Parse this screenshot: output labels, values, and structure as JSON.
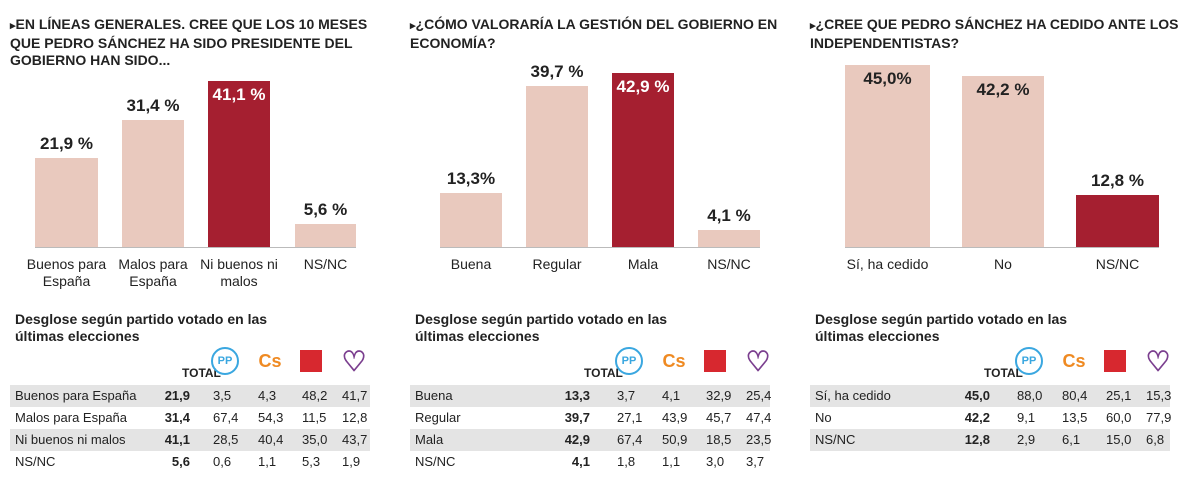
{
  "colors": {
    "light": "#e9c9be",
    "dark": "#a51f30",
    "pp": "#3aa7e0",
    "cs": "#ef8a22",
    "psoe": "#d7282f",
    "podemos": "#7b3f8f"
  },
  "table_title": "Desglose según partido votado en las últimas elecciones",
  "total_label": "TOTAL",
  "party_logos": [
    "PP",
    "Cs",
    "PSOE",
    "Podemos"
  ],
  "chart_data": [
    {
      "type": "bar",
      "title": "En líneas generales. Cree que los 10 meses que Pedro Sánchez ha sido presidente del Gobierno han sido...",
      "categories": [
        "Buenos para España",
        "Malos para España",
        "Ni buenos ni malos",
        "NS/NC"
      ],
      "values": [
        21.9,
        31.4,
        41.1,
        5.6
      ],
      "labels": [
        "21,9 %",
        "31,4 %",
        "41,1 %",
        "5,6 %"
      ],
      "highlight": 2,
      "unit": "%",
      "table": {
        "rows": [
          [
            "Buenos para España",
            "21,9",
            "3,5",
            "4,3",
            "48,2",
            "41,7"
          ],
          [
            "Malos para España",
            "31,4",
            "67,4",
            "54,3",
            "11,5",
            "12,8"
          ],
          [
            "Ni buenos ni malos",
            "41,1",
            "28,5",
            "40,4",
            "35,0",
            "43,7"
          ],
          [
            "NS/NC",
            "5,6",
            "0,6",
            "1,1",
            "5,3",
            "1,9"
          ]
        ]
      }
    },
    {
      "type": "bar",
      "title": "¿Cómo valoraría la gestión del Gobierno en economía?",
      "categories": [
        "Buena",
        "Regular",
        "Mala",
        "NS/NC"
      ],
      "values": [
        13.3,
        39.7,
        42.9,
        4.1
      ],
      "labels": [
        "13,3%",
        "39,7 %",
        "42,9 %",
        "4,1 %"
      ],
      "highlight": 2,
      "unit": "%",
      "table": {
        "rows": [
          [
            "Buena",
            "13,3",
            "3,7",
            "4,1",
            "32,9",
            "25,4"
          ],
          [
            "Regular",
            "39,7",
            "27,1",
            "43,9",
            "45,7",
            "47,4"
          ],
          [
            "Mala",
            "42,9",
            "67,4",
            "50,9",
            "18,5",
            "23,5"
          ],
          [
            "NS/NC",
            "4,1",
            "1,8",
            "1,1",
            "3,0",
            "3,7"
          ]
        ]
      }
    },
    {
      "type": "bar",
      "title": "¿Cree que Pedro Sánchez ha cedido ante los independentistas?",
      "categories": [
        "Sí, ha cedido",
        "No",
        "NS/NC"
      ],
      "values": [
        45.0,
        42.2,
        12.8
      ],
      "labels": [
        "45,0%",
        "42,2 %",
        "12,8 %"
      ],
      "highlight": 2,
      "unit": "%",
      "table": {
        "rows": [
          [
            "Sí, ha cedido",
            "45,0",
            "88,0",
            "80,4",
            "25,1",
            "15,3"
          ],
          [
            "No",
            "42,2",
            "9,1",
            "13,5",
            "60,0",
            "77,9"
          ],
          [
            "NS/NC",
            "12,8",
            "2,9",
            "6,1",
            "15,0",
            "6,8"
          ]
        ]
      }
    }
  ]
}
